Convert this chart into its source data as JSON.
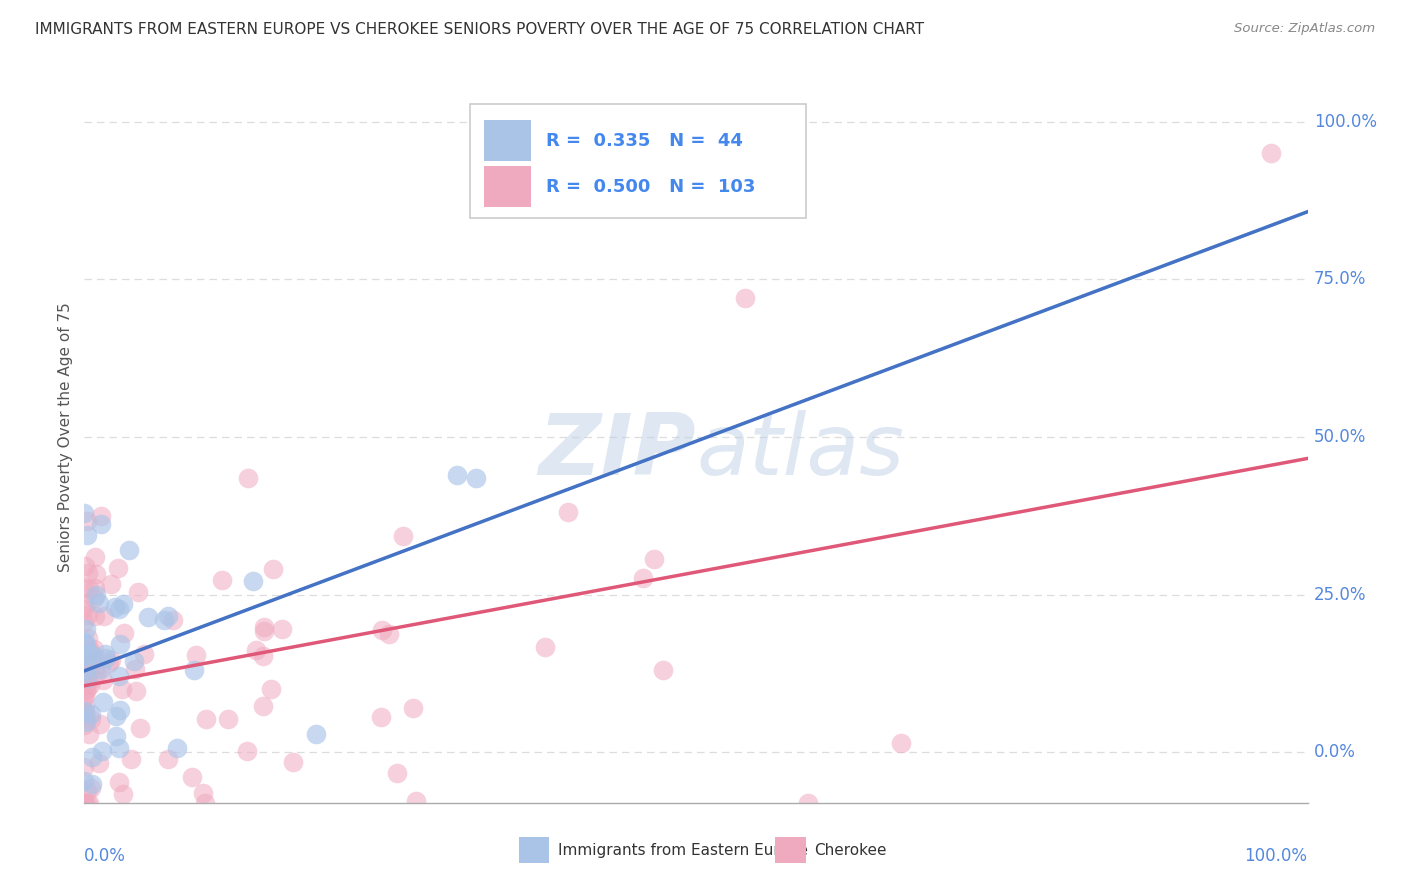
{
  "title": "IMMIGRANTS FROM EASTERN EUROPE VS CHEROKEE SENIORS POVERTY OVER THE AGE OF 75 CORRELATION CHART",
  "source": "Source: ZipAtlas.com",
  "ylabel": "Seniors Poverty Over the Age of 75",
  "blue_R": 0.335,
  "blue_N": 44,
  "pink_R": 0.5,
  "pink_N": 103,
  "blue_color": "#aac4e8",
  "pink_color": "#f0aac0",
  "blue_line_color": "#4472c4",
  "pink_line_color": "#e05878",
  "blue_dashed_color": "#8ab0d8",
  "grid_color": "#dddddd",
  "title_color": "#333333",
  "watermark_color_rgb": [
    0.75,
    0.82,
    0.9
  ],
  "watermark_alpha": 0.5,
  "legend_label_blue": "Immigrants from Eastern Europe",
  "legend_label_pink": "Cherokee",
  "y_tick_vals": [
    0.0,
    0.25,
    0.5,
    0.75,
    1.0
  ],
  "y_tick_labels": [
    "0.0%",
    "25.0%",
    "50.0%",
    "75.0%",
    "100.0%"
  ],
  "xlim": [
    0.0,
    1.0
  ],
  "ylim": [
    -0.08,
    1.08
  ]
}
